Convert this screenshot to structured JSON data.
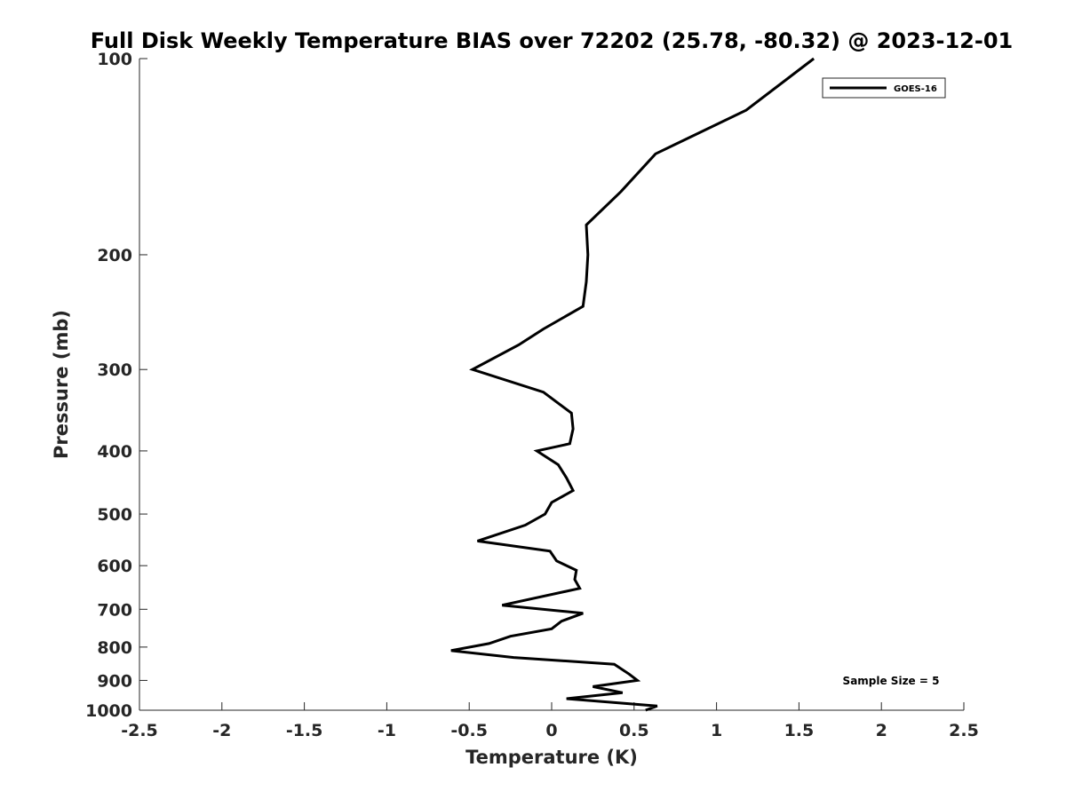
{
  "chart_data": {
    "type": "line",
    "title": "Full Disk Weekly Temperature BIAS over 72202 (25.78, -80.32) @ 2023-12-01",
    "xlabel": "Temperature (K)",
    "ylabel": "Pressure (mb)",
    "xlim": [
      -2.5,
      2.5
    ],
    "ylim": [
      100,
      1000
    ],
    "y_scale": "log",
    "y_reversed": true,
    "x_ticks": [
      "-2.5",
      "-2",
      "-1.5",
      "-1",
      "-0.5",
      "0",
      "0.5",
      "1",
      "1.5",
      "2",
      "2.5"
    ],
    "y_ticks": [
      "100",
      "200",
      "300",
      "400",
      "500",
      "600",
      "700",
      "800",
      "900",
      "1000"
    ],
    "grid": false,
    "legend_position": "top-right",
    "annotation": "Sample Size = 5",
    "series": [
      {
        "name": "GOES-16",
        "color": "#000000",
        "points": [
          [
            1.59,
            100
          ],
          [
            1.18,
            120
          ],
          [
            0.63,
            140
          ],
          [
            0.42,
            160
          ],
          [
            0.21,
            180
          ],
          [
            0.22,
            200
          ],
          [
            0.21,
            220
          ],
          [
            0.19,
            240
          ],
          [
            -0.05,
            260
          ],
          [
            -0.2,
            275
          ],
          [
            -0.48,
            300
          ],
          [
            -0.05,
            325
          ],
          [
            0.12,
            350
          ],
          [
            0.13,
            370
          ],
          [
            0.11,
            390
          ],
          [
            -0.09,
            400
          ],
          [
            0.04,
            420
          ],
          [
            0.09,
            440
          ],
          [
            0.13,
            460
          ],
          [
            0.0,
            480
          ],
          [
            -0.04,
            500
          ],
          [
            -0.16,
            520
          ],
          [
            -0.45,
            550
          ],
          [
            -0.01,
            570
          ],
          [
            0.03,
            590
          ],
          [
            0.15,
            610
          ],
          [
            0.14,
            630
          ],
          [
            0.17,
            650
          ],
          [
            -0.3,
            690
          ],
          [
            0.19,
            710
          ],
          [
            0.06,
            730
          ],
          [
            0.0,
            750
          ],
          [
            -0.25,
            770
          ],
          [
            -0.38,
            790
          ],
          [
            -0.61,
            810
          ],
          [
            -0.23,
            830
          ],
          [
            0.38,
            850
          ],
          [
            0.47,
            880
          ],
          [
            0.52,
            900
          ],
          [
            0.25,
            920
          ],
          [
            0.43,
            940
          ],
          [
            0.09,
            960
          ],
          [
            0.64,
            985
          ],
          [
            0.57,
            1000
          ]
        ]
      }
    ]
  }
}
